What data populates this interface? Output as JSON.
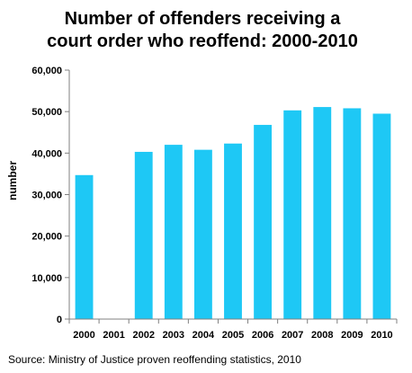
{
  "chart_data": {
    "type": "bar",
    "title_lines": [
      "Number of offenders receiving a",
      "court order who reoffend: 2000-2010"
    ],
    "xlabel": "",
    "ylabel": "number",
    "categories": [
      "2000",
      "2001",
      "2002",
      "2003",
      "2004",
      "2005",
      "2006",
      "2007",
      "2008",
      "2009",
      "2010"
    ],
    "values": [
      34700,
      null,
      40300,
      42000,
      40800,
      42300,
      46800,
      50300,
      51100,
      50800,
      49500
    ],
    "ylim": [
      0,
      60000
    ],
    "yticks": [
      0,
      10000,
      20000,
      30000,
      40000,
      50000,
      60000
    ],
    "ytick_labels": [
      "0",
      "10,000",
      "20,000",
      "30,000",
      "40,000",
      "50,000",
      "60,000"
    ],
    "grid": false,
    "legend": "none",
    "bar_color": "#1ec8f5",
    "axis_color": "#808080",
    "source": "Source: Ministry of Justice proven reoffending statistics, 2010"
  }
}
